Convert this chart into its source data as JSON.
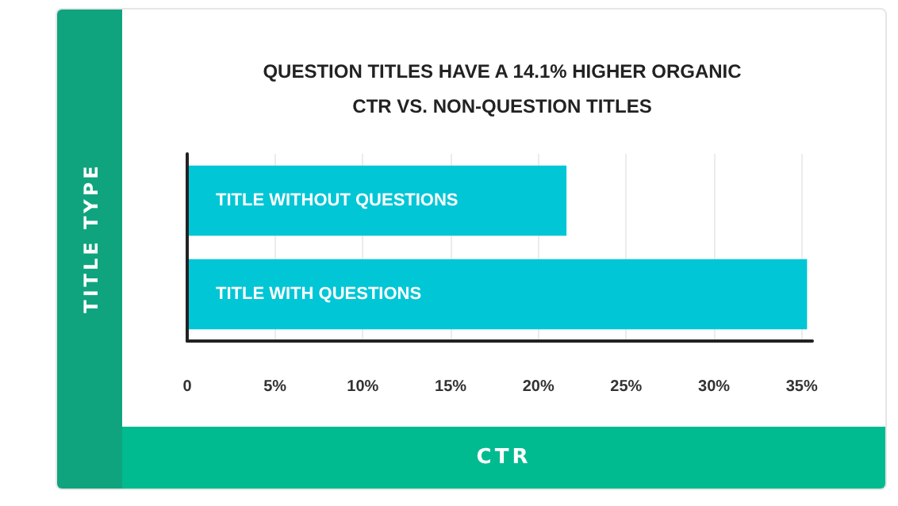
{
  "chart_data": {
    "type": "bar",
    "orientation": "horizontal",
    "title": "QUESTION TITLES HAVE A 14.1% HIGHER ORGANIC\nCTR VS. NON-QUESTION TITLES",
    "xlabel": "CTR",
    "ylabel": "TITLE TYPE",
    "categories": [
      "TITLE WITHOUT QUESTIONS",
      "TITLE WITH QUESTIONS"
    ],
    "values": [
      21.6,
      35.3
    ],
    "color": "#00c6d6",
    "xlim": [
      0,
      35.6
    ],
    "xticks": [
      0,
      {
        "value": 5,
        "label": "5%"
      },
      {
        "value": 10,
        "label": "10%"
      },
      {
        "value": 15,
        "label": "15%"
      },
      {
        "value": 20,
        "label": "20%"
      },
      {
        "value": 25,
        "label": "25%"
      },
      {
        "value": 30,
        "label": "30%"
      },
      {
        "value": 35,
        "label": "35%"
      }
    ],
    "grid": "x"
  }
}
